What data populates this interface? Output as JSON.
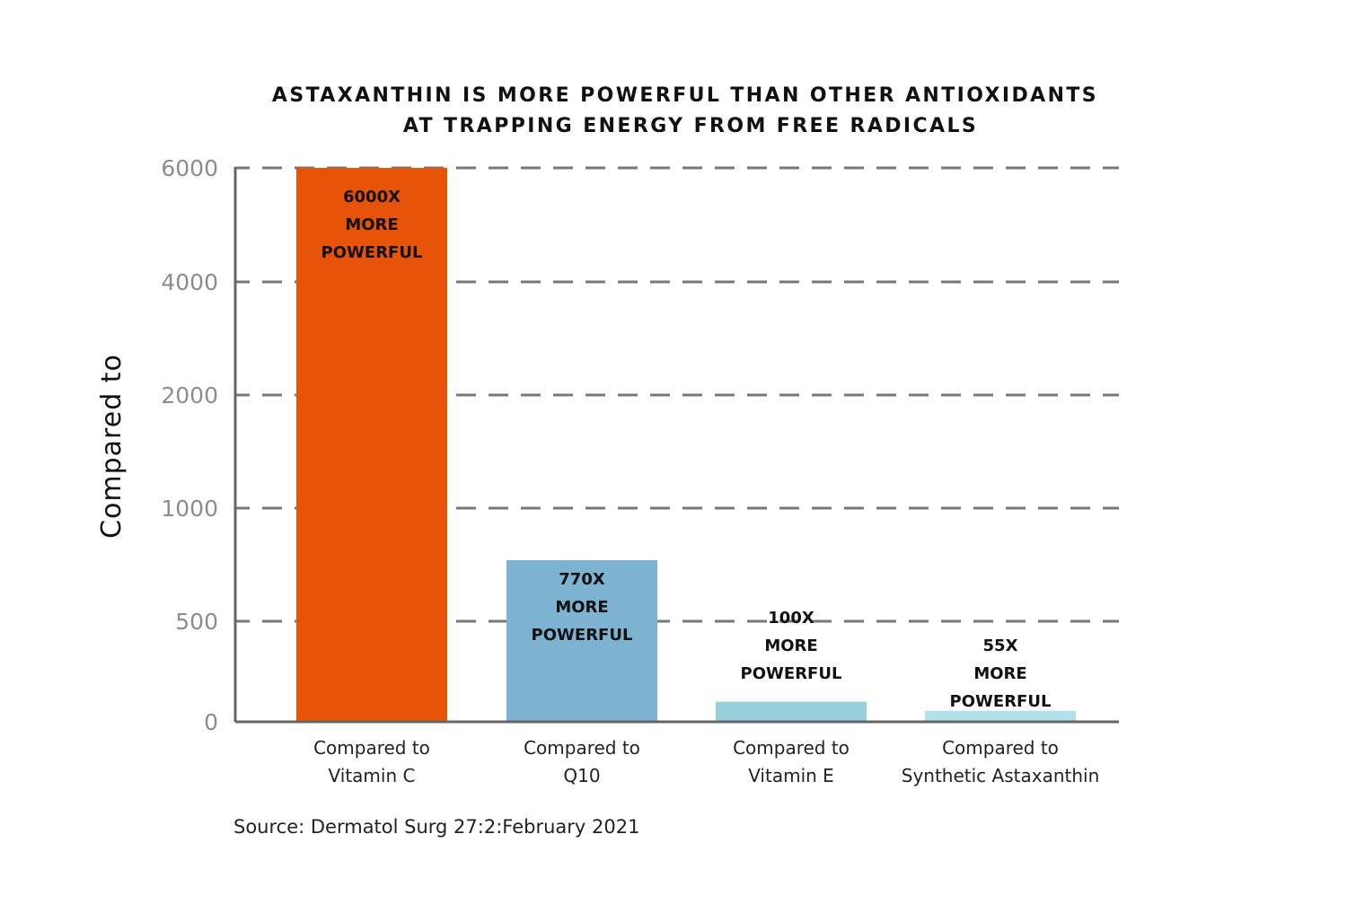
{
  "chart_data": {
    "type": "bar",
    "title": [
      "ASTAXANTHIN IS MORE POWERFUL THAN OTHER ANTIOXIDANTS",
      "AT TRAPPING ENERGY FROM FREE RADICALS"
    ],
    "ylabel": "Compared to",
    "xlabel": "",
    "y_ticks": [
      0,
      500,
      1000,
      2000,
      4000,
      6000
    ],
    "y_tick_labels": [
      "0",
      "500",
      "1000",
      "2000",
      "4000",
      "6000"
    ],
    "ylim": [
      0,
      6000
    ],
    "grid": "dashed horizontal",
    "categories": [
      [
        "Compared to",
        "Vitamin C"
      ],
      [
        "Compared to",
        "Q10"
      ],
      [
        "Compared to",
        "Vitamin E"
      ],
      [
        "Compared to",
        "Synthetic Astaxanthin"
      ]
    ],
    "values": [
      6000,
      770,
      100,
      55
    ],
    "data_labels": [
      [
        "6000X",
        "MORE",
        "POWERFUL"
      ],
      [
        "770X",
        "MORE",
        "POWERFUL"
      ],
      [
        "100X",
        "MORE",
        "POWERFUL"
      ],
      [
        "55X",
        "MORE",
        "POWERFUL"
      ]
    ],
    "colors": [
      "#e8530a",
      "#7db3d0",
      "#96ced9",
      "#b3e1ea"
    ],
    "source": "Source: Dermatol Surg 27:2:February 2021"
  }
}
